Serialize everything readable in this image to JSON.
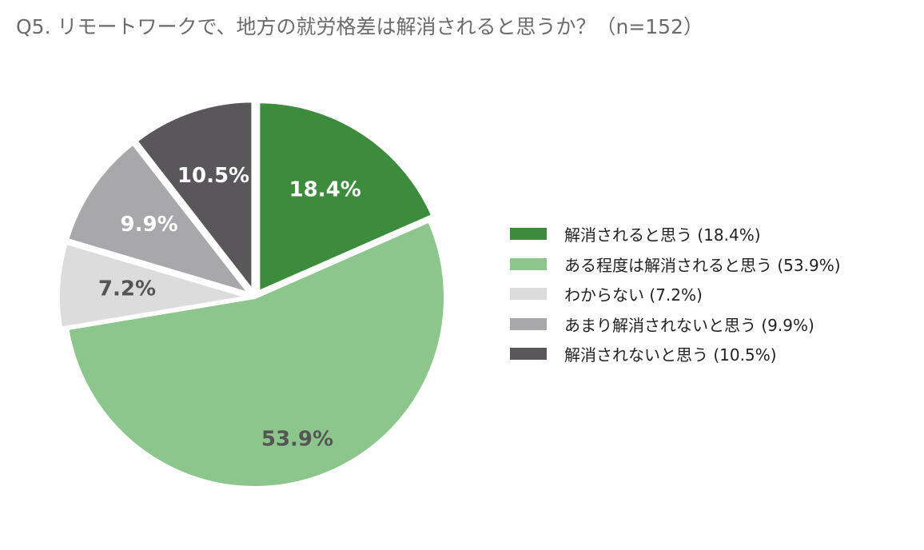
{
  "title": "Q5. リモートワークで、地方の就労格差は解消されると思うか？（n=152）",
  "chart_data": {
    "type": "pie",
    "title": "Q5. リモートワークで、地方の就労格差は解消されると思うか？（n=152）",
    "slices": [
      {
        "name": "解消されると思う",
        "value": 18.4,
        "label": "18.4%",
        "legend": "解消されると思う (18.4%)",
        "color": "#3d8b3d",
        "label_color": "#ffffff",
        "exploded": true
      },
      {
        "name": "ある程度は解消されると思う",
        "value": 53.9,
        "label": "53.9%",
        "legend": "ある程度は解消されると思う (53.9%)",
        "color": "#8dc68d",
        "label_color": "#555555",
        "exploded": false
      },
      {
        "name": "わからない",
        "value": 7.2,
        "label": "7.2%",
        "legend": "わからない (7.2%)",
        "color": "#dcdcdc",
        "label_color": "#555555",
        "exploded": true
      },
      {
        "name": "あまり解消されないと思う",
        "value": 9.9,
        "label": "9.9%",
        "legend": "あまり解消されないと思う (9.9%)",
        "color": "#a8a7aa",
        "label_color": "#ffffff",
        "exploded": true
      },
      {
        "name": "解消されないと思う",
        "value": 10.5,
        "label": "10.5%",
        "legend": "解消されないと思う (10.5%)",
        "color": "#59575a",
        "label_color": "#ffffff",
        "exploded": true
      }
    ],
    "start_angle": "12 o'clock",
    "direction": "clockwise",
    "legend_position": "right"
  }
}
